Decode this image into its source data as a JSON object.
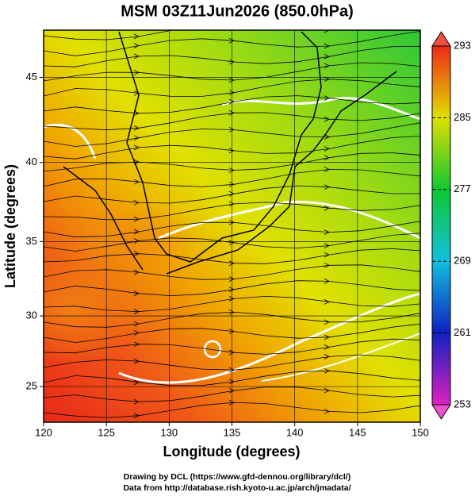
{
  "title": "MSM 03Z11Jun2026 (850.0hPa)",
  "x_axis": {
    "label": "Longitude (degrees)",
    "lim": [
      120,
      150
    ],
    "ticks": [
      120,
      125,
      130,
      135,
      140,
      145,
      150
    ]
  },
  "y_axis": {
    "label": "Latitude  (degrees)",
    "lim": [
      22.4,
      47.6
    ],
    "ticks": [
      25,
      30,
      35,
      40,
      45
    ]
  },
  "colorbar": {
    "lim": [
      253,
      293
    ],
    "ticks": [
      253,
      261,
      269,
      277,
      285,
      293
    ]
  },
  "credits": [
    "Drawing by DCL (https://www.gfd-dennou.org/library/dcl/)",
    "Data from http://database.rish.kyoto-u.ac.jp/arch/jmadata/"
  ]
}
